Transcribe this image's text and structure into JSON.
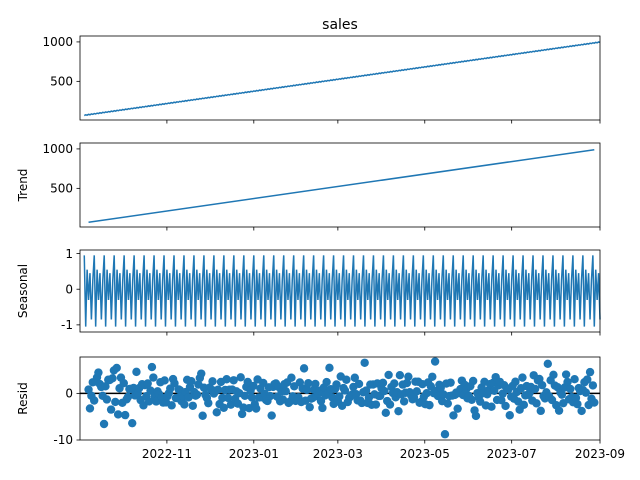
{
  "chart_data": {
    "type": "line",
    "title": "sales",
    "x_range": [
      "2022-09-01",
      "2023-09-01"
    ],
    "x_ticks": [
      "2022-11",
      "2023-01",
      "2023-03",
      "2023-05",
      "2023-07",
      "2023-09"
    ],
    "grid": false,
    "series_color": "#1f77b4",
    "panels": [
      {
        "name": "observed",
        "ylabel": "",
        "plot": "line",
        "ylim": [
          10,
          1075
        ],
        "yticks": [
          500,
          1000
        ],
        "start_value": 70,
        "end_value": 998,
        "x_start": "2022-09-04",
        "x_end": "2023-09-01"
      },
      {
        "name": "trend",
        "ylabel": "Trend",
        "plot": "line",
        "ylim": [
          10,
          1075
        ],
        "yticks": [
          500,
          1000
        ],
        "start_value": 70,
        "end_value": 990,
        "x_start": "2022-09-07",
        "x_end": "2023-08-28"
      },
      {
        "name": "seasonal",
        "ylabel": "Seasonal",
        "plot": "line",
        "ylim": [
          -1.2,
          1.1
        ],
        "yticks": [
          -1,
          0,
          1
        ],
        "period_days": 7,
        "pattern": [
          0.95,
          -1.05,
          0.55,
          -0.3,
          0.45,
          -0.85,
          0.25
        ],
        "x_start": "2022-09-04",
        "x_end": "2023-09-01"
      },
      {
        "name": "resid",
        "ylabel": "Resid",
        "plot": "scatter",
        "ylim": [
          -10,
          7.8
        ],
        "yticks": [
          -10,
          0
        ],
        "zero_line": true,
        "x_start": "2022-09-07",
        "x_end": "2023-08-28",
        "values": [
          0.82,
          -3.23,
          -0.51,
          2.38,
          -1.53,
          2.54,
          3.41,
          4.45,
          1.99,
          1.37,
          -0.53,
          -6.57,
          1.51,
          -1.31,
          2.93,
          2.85,
          -3.48,
          3.23,
          4.92,
          -1.84,
          5.45,
          -4.52,
          1.1,
          3.38,
          -2.02,
          2.18,
          -4.66,
          -1.28,
          -0.76,
          0.92,
          0.97,
          -6.39,
          1.15,
          -0.45,
          4.61,
          0.01,
          1.14,
          -1.45,
          1.97,
          -2.57,
          1.77,
          -0.62,
          2.12,
          -1.73,
          0.59,
          5.64,
          3.4,
          -0.65,
          -1.74,
          0.44,
          -0.14,
          2.39,
          -0.89,
          -1.98,
          2.77,
          -1.95,
          -0.63,
          0.04,
          1.04,
          -2.57,
          3.07,
          2.15,
          -1.01,
          -0.99,
          0.83,
          0.66,
          -1.67,
          -0.61,
          -2.38,
          0.29,
          2.91,
          -0.86,
          1.36,
          2.61,
          -2.66,
          0.29,
          -0.5,
          -0.28,
          1.89,
          3.3,
          4.23,
          -4.8,
          1.21,
          -0.34,
          -0.99,
          -2.09,
          1.24,
          0.85,
          2.59,
          -0.04,
          0.6,
          -4.06,
          0.79,
          -2.3,
          2.45,
          -0.99,
          -3.09,
          0.72,
          3.03,
          -0.97,
          0.79,
          -2.43,
          0.82,
          2.81,
          -1.2,
          0.44,
          -2.2,
          0.03,
          3.44,
          -4.42,
          -3.05,
          -0.52,
          1.38,
          2.44,
          -3.17,
          0.59,
          -0.9,
          1.6,
          -2.33,
          -3.26,
          2.98,
          -0.88,
          1.03,
          -0.84,
          2.23,
          -0.11,
          -1.42,
          -1.63,
          1.3,
          -0.58,
          -4.76,
          1.38,
          1.98,
          2.12,
          -0.72,
          1.36,
          -1.7,
          0.41,
          -1.34,
          1.96,
          0.46,
          2.35,
          -2.05,
          -1.74,
          3.36,
          -0.63,
          1.52,
          -1.62,
          -1.45,
          -0.86,
          2.35,
          -1.85,
          1.03,
          5.36,
          -1.56,
          0.77,
          2.18,
          -2.96,
          -1.13,
          -1.01,
          0.8,
          2.03,
          -0.59,
          -0.04,
          0.57,
          -1.66,
          -3.13,
          1.24,
          -0.43,
          2.43,
          0.06,
          5.48,
          0.89,
          -0.86,
          -2.26,
          0.95,
          1.91,
          -1.75,
          -0.66,
          3.62,
          -2.66,
          1.13,
          0.62,
          2.92,
          -1.86,
          -0.96,
          -0.69,
          -0.25,
          1.38,
          3.35,
          -0.17,
          -1.5,
          2.02,
          -1.54,
          -2.06,
          0.24,
          6.56,
          0.6,
          -2.04,
          -0.92,
          1.88,
          -2.46,
          1.9,
          -0.21,
          -2.4,
          2.14,
          -0.55,
          -0.54,
          1.08,
          2.26,
          0.5,
          -4.17,
          -1.64,
          3.96,
          -2.4,
          1.36,
          0.07,
          2.12,
          -0.85,
          0.24,
          -3.82,
          3.9,
          -0.21,
          1.88,
          -1.72,
          0.13,
          2.22,
          3.58,
          0.26,
          -0.45,
          -1.26,
          -0.83,
          2.51,
          0.44,
          2.49,
          -2.01,
          -1.81,
          1.97,
          -0.73,
          -2.32,
          0.03,
          2.35,
          -2.52,
          1.51,
          3.56,
          0.05,
          6.83,
          0.53,
          -0.58,
          1.84,
          1.18,
          -1.67,
          -0.24,
          -8.76,
          2.11,
          -2.19,
          -0.57,
          2.3,
          -0.48,
          -4.73,
          -0.34,
          0.16,
          -3.28,
          0.04,
          0.92,
          2.73,
          -0.37,
          1.84,
          0.85,
          -1.05,
          -0.56,
          1.55,
          -1.38,
          2.66,
          -3.65,
          -4.84,
          0.05,
          -0.81,
          -1.77,
          1.24,
          0.03,
          2.48,
          -2.58,
          -0.2,
          0.68,
          1.99,
          -2.86,
          2.24,
          0.55,
          3.48,
          -1.41,
          1.71,
          2.46,
          -1.46,
          -0.05,
          1.76,
          -2.7,
          1.09,
          0.84,
          -4.69,
          -0.71,
          1.6,
          -1.13,
          2.49,
          0.28,
          -1.76,
          -3.5,
          1.1,
          3.39,
          -2.46,
          -0.43,
          1.56,
          -0.31,
          0.06,
          1.37,
          -1.55,
          3.88,
          0.96,
          -2.14,
          2.78,
          3.08,
          -3.75,
          1.76,
          -0.59,
          -1.08,
          0.23,
          6.34,
          -0.65,
          2.8,
          -1.42,
          3.98,
          1.68,
          -2.55,
          1.31,
          -3.7,
          0.19,
          -0.28,
          -2.1,
          1.26,
          4.04,
          2.42,
          -1.27,
          0.95,
          -0.82,
          -1.9,
          3.04,
          -0.97,
          -2.31,
          1.14,
          0.49,
          -3.77,
          0.69,
          2.39,
          0.16,
          2.97,
          -2.5,
          4.56,
          -1.14,
          1.71,
          -1.97
        ]
      }
    ]
  }
}
